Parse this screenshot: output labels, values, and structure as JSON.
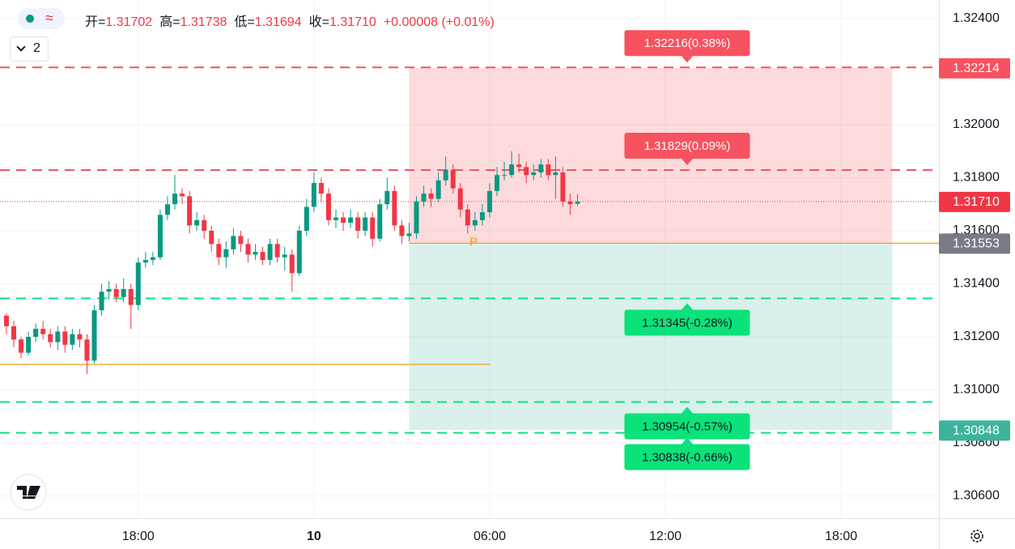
{
  "header": {
    "pair_toggle": "≈",
    "layout_count": "2",
    "ohlc": [
      {
        "label": "开=",
        "value": "1.31702"
      },
      {
        "label": "高=",
        "value": "1.31738"
      },
      {
        "label": "低=",
        "value": "1.31694"
      },
      {
        "label": "收=",
        "value": "1.31710"
      }
    ],
    "change": "+0.00008 (+0.01%)"
  },
  "chart_data": {
    "type": "candlestick",
    "x": [
      -10.5,
      -10.25,
      -10,
      -9.75,
      -9.5,
      -9.25,
      -9,
      -8.75,
      -8.5,
      -8.25,
      -8,
      -7.75,
      -7.5,
      -7.25,
      -7,
      -6.75,
      -6.5,
      -6.25,
      -6,
      -5.75,
      -5.5,
      -5.25,
      -5,
      -4.75,
      -4.5,
      -4.25,
      -4,
      -3.75,
      -3.5,
      -3.25,
      -3,
      -2.75,
      -2.5,
      -2.25,
      -2,
      -1.75,
      -1.5,
      -1.25,
      -1,
      -0.75,
      -0.5,
      -0.25,
      0,
      0.25,
      0.5,
      0.75,
      1,
      1.25,
      1.5,
      1.75,
      2,
      2.25,
      2.5,
      2.75,
      3,
      3.25,
      3.5,
      3.75,
      4,
      4.25,
      4.5,
      4.75,
      5,
      5.25,
      5.5,
      5.75,
      6,
      6.25,
      6.5,
      6.75,
      7,
      7.25,
      7.5,
      7.75,
      8,
      8.25,
      8.5,
      8.75,
      9
    ],
    "open": [
      1.3128,
      1.3124,
      1.3119,
      1.3114,
      1.312,
      1.3123,
      1.3121,
      1.3118,
      1.3122,
      1.3117,
      1.3121,
      1.3119,
      1.3111,
      1.313,
      1.3137,
      1.3138,
      1.3135,
      1.3138,
      1.3132,
      1.3148,
      1.3149,
      1.315,
      1.3166,
      1.317,
      1.3174,
      1.3173,
      1.3162,
      1.3164,
      1.316,
      1.3155,
      1.315,
      1.3153,
      1.3158,
      1.3155,
      1.3151,
      1.3152,
      1.3149,
      1.3155,
      1.315,
      1.3151,
      1.3144,
      1.316,
      1.3169,
      1.3178,
      1.3174,
      1.3164,
      1.3165,
      1.3163,
      1.3165,
      1.316,
      1.3165,
      1.3157,
      1.317,
      1.3175,
      1.3162,
      1.3158,
      1.3159,
      1.3171,
      1.3174,
      1.3172,
      1.3179,
      1.3183,
      1.3176,
      1.3168,
      1.3162,
      1.3164,
      1.3167,
      1.3175,
      1.3181,
      1.3181,
      1.3185,
      1.3184,
      1.3181,
      1.3182,
      1.3185,
      1.3181,
      1.3182,
      1.3171,
      1.31702
    ],
    "high": [
      1.3129,
      1.3126,
      1.312,
      1.3122,
      1.3125,
      1.3126,
      1.3123,
      1.3124,
      1.3124,
      1.3123,
      1.3123,
      1.3121,
      1.3132,
      1.314,
      1.3141,
      1.314,
      1.3142,
      1.314,
      1.315,
      1.3152,
      1.3152,
      1.3168,
      1.3173,
      1.3181,
      1.3176,
      1.3175,
      1.3167,
      1.3166,
      1.3162,
      1.3157,
      1.3156,
      1.3161,
      1.316,
      1.3157,
      1.3155,
      1.3154,
      1.3157,
      1.3157,
      1.3154,
      1.3153,
      1.3162,
      1.3172,
      1.3182,
      1.318,
      1.3176,
      1.3168,
      1.3167,
      1.3168,
      1.3167,
      1.3167,
      1.3167,
      1.3172,
      1.318,
      1.3177,
      1.3164,
      1.3163,
      1.3173,
      1.3177,
      1.3176,
      1.3182,
      1.3188,
      1.3185,
      1.3178,
      1.317,
      1.3167,
      1.317,
      1.3178,
      1.3184,
      1.3186,
      1.319,
      1.3189,
      1.3186,
      1.3185,
      1.3187,
      1.3187,
      1.3188,
      1.3184,
      1.3174,
      1.31738
    ],
    "low": [
      1.3121,
      1.3116,
      1.3112,
      1.3113,
      1.3118,
      1.3119,
      1.3116,
      1.3115,
      1.3114,
      1.3115,
      1.3116,
      1.3106,
      1.311,
      1.3128,
      1.3134,
      1.3133,
      1.3133,
      1.3123,
      1.313,
      1.3146,
      1.3147,
      1.3149,
      1.3164,
      1.3168,
      1.317,
      1.3159,
      1.316,
      1.3157,
      1.3152,
      1.3147,
      1.3146,
      1.3151,
      1.3152,
      1.3148,
      1.3149,
      1.3147,
      1.3147,
      1.3148,
      1.3145,
      1.3137,
      1.3143,
      1.3158,
      1.3167,
      1.3171,
      1.3162,
      1.3161,
      1.316,
      1.3161,
      1.3157,
      1.3158,
      1.3154,
      1.3156,
      1.3168,
      1.316,
      1.3155,
      1.3156,
      1.3157,
      1.3169,
      1.3169,
      1.3171,
      1.3177,
      1.3174,
      1.3165,
      1.3159,
      1.316,
      1.3162,
      1.3165,
      1.3173,
      1.3179,
      1.318,
      1.3182,
      1.3178,
      1.3179,
      1.318,
      1.3179,
      1.3172,
      1.3169,
      1.3166,
      1.31694
    ],
    "close": [
      1.3124,
      1.3119,
      1.3114,
      1.312,
      1.3123,
      1.3121,
      1.3118,
      1.3122,
      1.3117,
      1.3121,
      1.3119,
      1.3111,
      1.313,
      1.3137,
      1.3138,
      1.3135,
      1.3138,
      1.3132,
      1.3148,
      1.3149,
      1.315,
      1.3166,
      1.317,
      1.3174,
      1.3173,
      1.3162,
      1.3164,
      1.316,
      1.3155,
      1.315,
      1.3153,
      1.3158,
      1.3155,
      1.3151,
      1.3152,
      1.3149,
      1.3155,
      1.315,
      1.3151,
      1.3144,
      1.316,
      1.3169,
      1.3178,
      1.3174,
      1.3164,
      1.3165,
      1.3163,
      1.3165,
      1.316,
      1.3165,
      1.3157,
      1.317,
      1.3175,
      1.3162,
      1.3158,
      1.3159,
      1.3171,
      1.3174,
      1.3172,
      1.3179,
      1.3183,
      1.3176,
      1.3168,
      1.3162,
      1.3164,
      1.3167,
      1.3175,
      1.3181,
      1.3181,
      1.3185,
      1.3184,
      1.3181,
      1.3182,
      1.3185,
      1.3181,
      1.3182,
      1.3171,
      1.317,
      1.3171
    ],
    "up_color": "#089981",
    "down_color": "#f23645",
    "xlim": [
      -10.72,
      21.34
    ],
    "xticks": [
      {
        "value": -6,
        "label": "18:00"
      },
      {
        "value": 0,
        "label": "10"
      },
      {
        "value": 6,
        "label": "06:00"
      },
      {
        "value": 12,
        "label": "12:00"
      },
      {
        "value": 18,
        "label": "18:00"
      }
    ],
    "ylim": [
      1.30516,
      1.3247
    ],
    "yticks": [
      {
        "value": 1.306,
        "label": "1.30600"
      },
      {
        "value": 1.308,
        "label": "1.30800"
      },
      {
        "value": 1.31,
        "label": "1.31000"
      },
      {
        "value": 1.312,
        "label": "1.31200"
      },
      {
        "value": 1.314,
        "label": "1.31400"
      },
      {
        "value": 1.316,
        "label": "1.31600"
      },
      {
        "value": 1.318,
        "label": "1.31800"
      },
      {
        "value": 1.32,
        "label": "1.32000"
      },
      {
        "value": 1.324,
        "label": "1.32400"
      }
    ],
    "grid": true,
    "target_lines": [
      {
        "value": 1.32216,
        "label": "1.32216(0.38%)",
        "color": "#f7525f"
      },
      {
        "value": 1.31829,
        "label": "1.31829(0.09%)",
        "color": "#f7525f"
      },
      {
        "value": 1.31345,
        "label": "1.31345(-0.28%)",
        "color": "#0be27a"
      },
      {
        "value": 1.30954,
        "label": "1.30954(-0.57%)",
        "color": "#0be27a"
      },
      {
        "value": 1.30838,
        "label": "1.30838(-0.66%)",
        "color": "#0be27a"
      }
    ],
    "position": {
      "x_range": [
        3.25,
        19.75
      ],
      "entry": 1.31553,
      "top": 1.32214,
      "bottom": 1.30848,
      "entry_label": "P",
      "entry_label_x": 5.45
    },
    "reference_line": {
      "value": 1.31096,
      "x_end": 6,
      "color": "#f59c1a"
    },
    "price_badges": [
      {
        "value": 1.32214,
        "label": "1.32214",
        "color": "#f7525f"
      },
      {
        "value": 1.3171,
        "label": "1.31710",
        "color": "#f23645"
      },
      {
        "value": 1.31553,
        "label": "1.31553",
        "color": "#787b86"
      },
      {
        "value": 1.30848,
        "label": "1.30848",
        "color": "#3cb39c"
      }
    ]
  }
}
